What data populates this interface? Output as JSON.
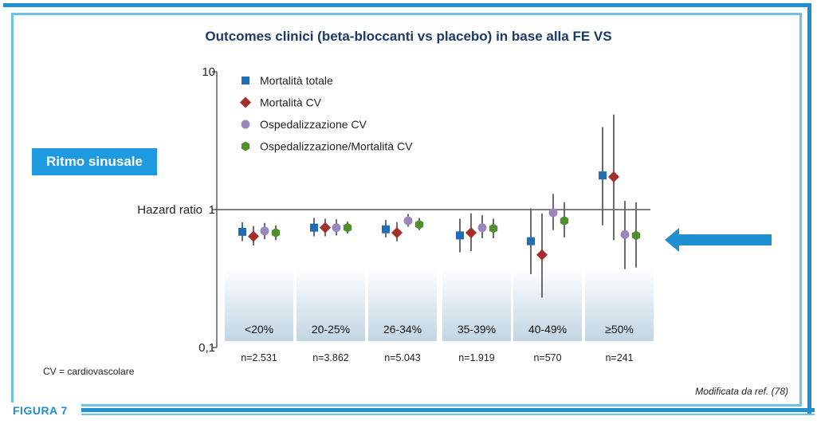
{
  "figure_label": "FIGURA 7",
  "badge": "Ritmo sinusale",
  "footnote": "CV = cardiovascolare",
  "source_note": "Modificata da ref. (78)",
  "chart_data": {
    "type": "scatter",
    "title": "Outcomes clinici (beta-bloccanti vs placebo) in base alla FE VS",
    "ylabel": "Hazard ratio",
    "yscale": "log",
    "ylim": [
      0.1,
      10
    ],
    "yticks": [
      {
        "value": 10,
        "label": "10"
      },
      {
        "value": 1,
        "label": "1"
      },
      {
        "value": 0.1,
        "label": "0,1"
      }
    ],
    "reference_line": 1,
    "legend_position": "top-left",
    "categories": [
      "<20%",
      "20-25%",
      "26-34%",
      "35-39%",
      "40-49%",
      "≥50%"
    ],
    "n_labels": [
      "n=2.531",
      "n=3.862",
      "n=5.043",
      "n=1.919",
      "n=570",
      "n=241"
    ],
    "series": [
      {
        "name": "Mortalità totale",
        "marker": "square",
        "color": "#1f6db5",
        "values": [
          0.69,
          0.74,
          0.72,
          0.65,
          0.59,
          1.77
        ],
        "ci_low": [
          0.59,
          0.64,
          0.63,
          0.49,
          0.34,
          0.77
        ],
        "ci_high": [
          0.81,
          0.87,
          0.84,
          0.86,
          1.02,
          3.97
        ]
      },
      {
        "name": "Mortalità CV",
        "marker": "diamond",
        "color": "#a5302a",
        "values": [
          0.64,
          0.74,
          0.68,
          0.68,
          0.47,
          1.73
        ],
        "ci_low": [
          0.55,
          0.64,
          0.59,
          0.5,
          0.23,
          0.6
        ],
        "ci_high": [
          0.76,
          0.86,
          0.81,
          0.94,
          0.94,
          4.89
        ]
      },
      {
        "name": "Ospedalizzazione CV",
        "marker": "circle",
        "color": "#9b86be",
        "values": [
          0.7,
          0.74,
          0.83,
          0.74,
          0.95,
          0.66
        ],
        "ci_low": [
          0.61,
          0.65,
          0.75,
          0.62,
          0.71,
          0.37
        ],
        "ci_high": [
          0.8,
          0.85,
          0.93,
          0.91,
          1.3,
          1.16
        ]
      },
      {
        "name": "Ospedalizzazione/Mortalità CV",
        "marker": "hexagon",
        "color": "#4f8f2f",
        "values": [
          0.68,
          0.74,
          0.78,
          0.73,
          0.83,
          0.65
        ],
        "ci_low": [
          0.6,
          0.67,
          0.71,
          0.62,
          0.63,
          0.38
        ],
        "ci_high": [
          0.77,
          0.82,
          0.87,
          0.86,
          1.13,
          1.13
        ]
      }
    ]
  }
}
